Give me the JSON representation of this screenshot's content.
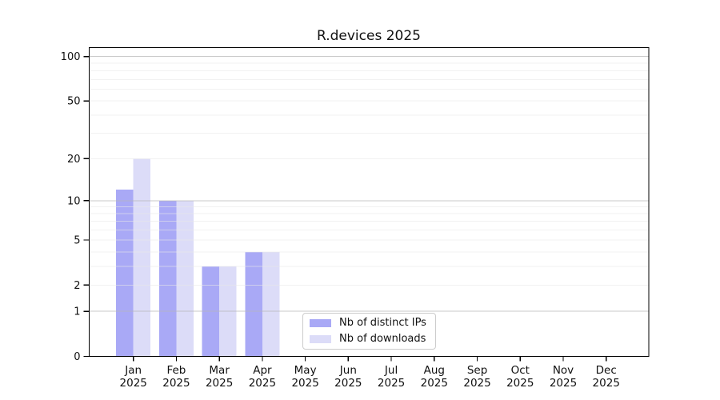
{
  "page": {
    "background": "#ffffff"
  },
  "chart_data": {
    "type": "bar",
    "title": "R.devices 2025",
    "categories": [
      "Jan",
      "Feb",
      "Mar",
      "Apr",
      "May",
      "Jun",
      "Jul",
      "Aug",
      "Sep",
      "Oct",
      "Nov",
      "Dec"
    ],
    "x_year_label": "2025",
    "series": [
      {
        "name": "Nb of distinct IPs",
        "color": "#a9a9f6",
        "values": [
          12,
          10,
          3,
          4,
          0,
          0,
          0,
          0,
          0,
          0,
          0,
          0
        ]
      },
      {
        "name": "Nb of downloads",
        "color": "#dcdcf8",
        "values": [
          20,
          10,
          3,
          4,
          0,
          0,
          0,
          0,
          0,
          0,
          0,
          0
        ]
      }
    ],
    "y_axis": {
      "scale": "log1p",
      "ylim": [
        0,
        112
      ],
      "tick_values": [
        0,
        1,
        2,
        5,
        10,
        20,
        50,
        100
      ],
      "tick_labels": [
        "0",
        "1",
        "2",
        "5",
        "10",
        "20",
        "50",
        "100"
      ],
      "major_grid_values": [
        1,
        10,
        100
      ],
      "minor_grid_values": [
        2,
        3,
        4,
        5,
        6,
        7,
        8,
        9,
        20,
        30,
        40,
        50,
        60,
        70,
        80,
        90
      ]
    },
    "legend": {
      "position": "lower-center",
      "labels": [
        "Nb of distinct IPs",
        "Nb of downloads"
      ]
    },
    "grid": {
      "major_color": "#b8b8b8",
      "minor_color": "#e8e8e8"
    },
    "axis_color": "#000000",
    "text_color": "#111111"
  }
}
